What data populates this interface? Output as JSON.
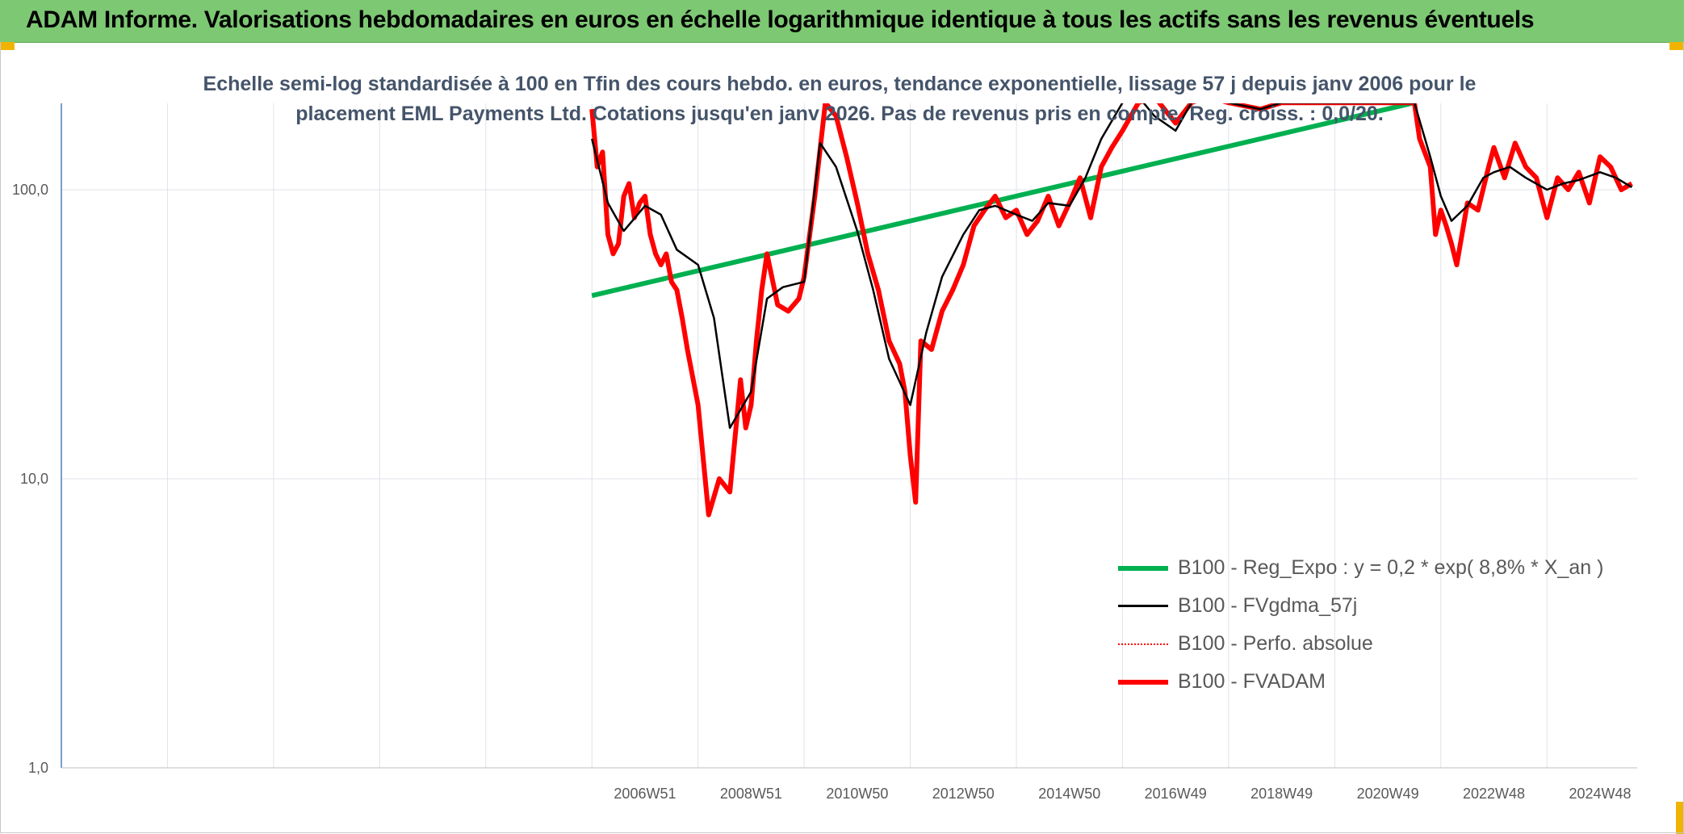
{
  "header": {
    "title": "ADAM Informe. Valorisations hebdomadaires en euros en échelle logarithmique identique à tous les actifs sans les revenus éventuels"
  },
  "chart_data": {
    "type": "line",
    "title_line1": "Echelle semi-log standardisée à 100 en Tfin des cours hebdo. en euros, tendance exponentielle, lissage 57 j depuis janv 2006 pour le",
    "title_line2": "placement EML Payments Ltd. Cotations jusqu'en janv 2026. Pas de revenus pris en compte. Reg. croiss. : 0,0/20.",
    "y_scale": "log",
    "ylim": [
      1,
      200
    ],
    "y_ticks": [
      "1,0",
      "10,0",
      "100,0"
    ],
    "x_ticks": [
      "2006W51",
      "2008W51",
      "2010W50",
      "2012W50",
      "2014W50",
      "2016W49",
      "2018W49",
      "2020W49",
      "2022W48",
      "2024W48"
    ],
    "xlim": [
      1996.0,
      2025.7
    ],
    "grid": true,
    "legend_position": "bottom-right",
    "series": [
      {
        "name": "B100 - Reg_Expo : y = 0,2 *  exp( 8,8% *  X_an )",
        "color": "#00b050",
        "style": "thick",
        "x": [
          2006.0,
          2021.5
        ],
        "y": [
          43,
          200
        ]
      },
      {
        "name": "B100 - FVgdma_57j",
        "color": "#000000",
        "style": "thin",
        "x": [
          2006.0,
          2006.3,
          2006.6,
          2007.0,
          2007.3,
          2007.6,
          2008.0,
          2008.3,
          2008.6,
          2009.0,
          2009.3,
          2009.6,
          2010.0,
          2010.3,
          2010.6,
          2011.0,
          2011.3,
          2011.6,
          2012.0,
          2012.3,
          2012.6,
          2013.0,
          2013.3,
          2013.6,
          2014.0,
          2014.3,
          2014.6,
          2015.0,
          2015.3,
          2015.6,
          2016.0,
          2016.3,
          2016.6,
          2017.0,
          2017.3,
          2017.6,
          2018.0,
          2018.6,
          2019.0,
          2021.5,
          2021.8,
          2022.0,
          2022.2,
          2022.5,
          2022.8,
          2023.0,
          2023.3,
          2023.6,
          2024.0,
          2024.3,
          2024.6,
          2025.0,
          2025.3,
          2025.6
        ],
        "y": [
          150,
          90,
          72,
          88,
          82,
          62,
          55,
          36,
          15,
          20,
          42,
          46,
          48,
          145,
          120,
          72,
          45,
          26,
          18,
          32,
          50,
          70,
          85,
          88,
          82,
          78,
          90,
          88,
          110,
          150,
          200,
          210,
          180,
          160,
          200,
          210,
          200,
          190,
          200,
          200,
          130,
          95,
          78,
          88,
          110,
          115,
          120,
          110,
          100,
          105,
          108,
          115,
          110,
          102
        ]
      },
      {
        "name": "B100 - Perfo. absolue",
        "color": "#ff0000",
        "style": "dotted",
        "x": [],
        "y": []
      },
      {
        "name": "B100 - FVADAM",
        "color": "#ff0000",
        "style": "thick",
        "x": [
          2006.0,
          2006.1,
          2006.2,
          2006.3,
          2006.4,
          2006.5,
          2006.6,
          2006.7,
          2006.8,
          2006.9,
          2007.0,
          2007.1,
          2007.2,
          2007.3,
          2007.4,
          2007.5,
          2007.6,
          2007.7,
          2007.8,
          2008.0,
          2008.2,
          2008.4,
          2008.6,
          2008.8,
          2008.9,
          2009.0,
          2009.1,
          2009.2,
          2009.3,
          2009.5,
          2009.7,
          2009.9,
          2010.0,
          2010.2,
          2010.4,
          2010.6,
          2010.8,
          2011.0,
          2011.2,
          2011.4,
          2011.6,
          2011.8,
          2011.9,
          2012.0,
          2012.1,
          2012.2,
          2012.4,
          2012.6,
          2012.8,
          2013.0,
          2013.2,
          2013.4,
          2013.6,
          2013.8,
          2014.0,
          2014.2,
          2014.4,
          2014.6,
          2014.8,
          2015.0,
          2015.2,
          2015.4,
          2015.6,
          2015.8,
          2016.0,
          2016.3,
          2016.6,
          2017.0,
          2017.3,
          2017.6,
          2018.0,
          2018.6,
          2019.0,
          2021.5,
          2021.6,
          2021.8,
          2021.9,
          2022.0,
          2022.1,
          2022.2,
          2022.3,
          2022.5,
          2022.7,
          2022.9,
          2023.0,
          2023.2,
          2023.4,
          2023.6,
          2023.8,
          2024.0,
          2024.2,
          2024.4,
          2024.6,
          2024.8,
          2025.0,
          2025.2,
          2025.4,
          2025.6
        ],
        "y": [
          190,
          120,
          135,
          70,
          60,
          65,
          95,
          105,
          80,
          90,
          95,
          70,
          60,
          55,
          60,
          48,
          45,
          36,
          28,
          18,
          7.5,
          10,
          9,
          22,
          15,
          18,
          30,
          45,
          60,
          40,
          38,
          42,
          50,
          95,
          200,
          180,
          130,
          90,
          60,
          45,
          30,
          25,
          20,
          12,
          8.3,
          30,
          28,
          38,
          45,
          55,
          75,
          85,
          95,
          80,
          85,
          70,
          78,
          95,
          75,
          90,
          110,
          80,
          120,
          140,
          160,
          200,
          210,
          170,
          200,
          210,
          200,
          190,
          200,
          200,
          150,
          120,
          70,
          85,
          75,
          65,
          55,
          90,
          85,
          120,
          140,
          110,
          145,
          120,
          110,
          80,
          110,
          100,
          115,
          90,
          130,
          120,
          100,
          105
        ]
      }
    ]
  }
}
